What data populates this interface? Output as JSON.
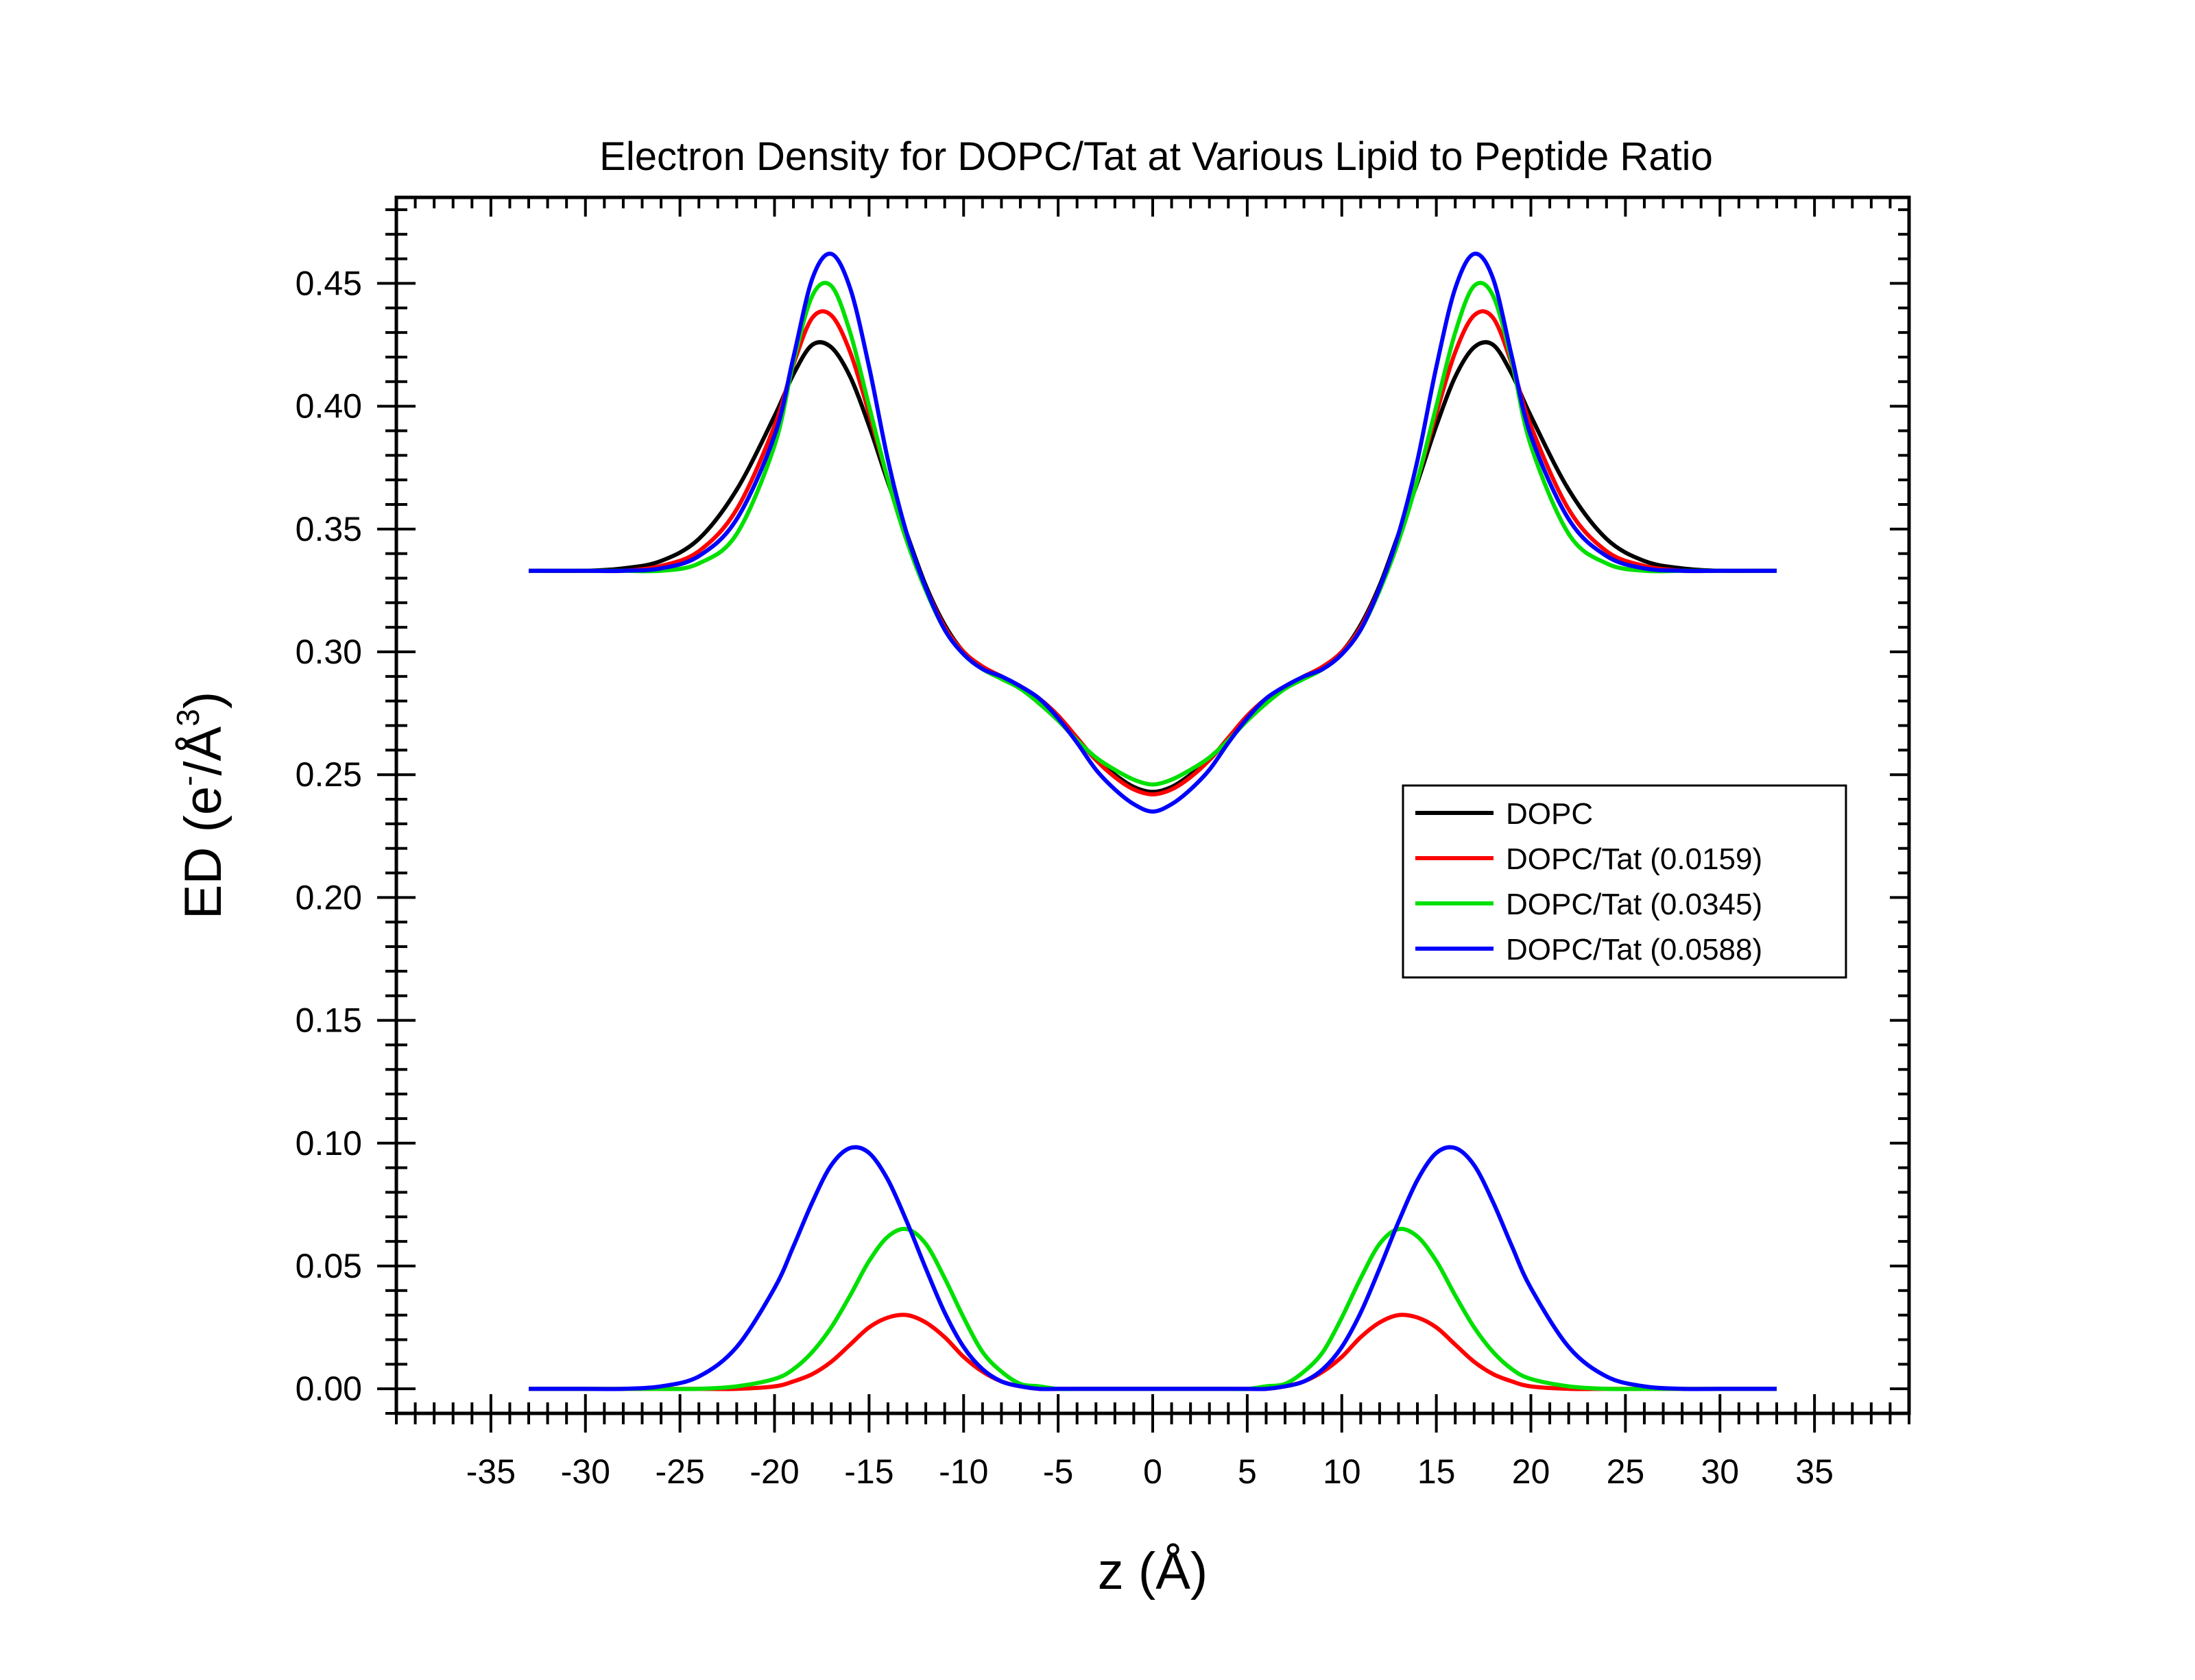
{
  "chart_data": {
    "type": "line",
    "title": "Electron Density for DOPC/Tat at Various Lipid to Peptide Ratio",
    "xlabel": "z (Å)",
    "ylabel_main": "ED (e",
    "ylabel_sup1": "-",
    "ylabel_mid": "/Å",
    "ylabel_sup2": "3",
    "ylabel_end": ")",
    "xlim": [
      -40,
      40
    ],
    "ylim": [
      -0.01,
      0.485
    ],
    "xticks": [
      -35,
      -30,
      -25,
      -20,
      -15,
      -10,
      -5,
      0,
      5,
      10,
      15,
      20,
      25,
      30,
      35
    ],
    "xtick_labels": [
      "-35",
      "-30",
      "-25",
      "-20",
      "-15",
      "-10",
      "-5",
      "0",
      "5",
      "10",
      "15",
      "20",
      "25",
      "30",
      "35"
    ],
    "yticks": [
      0.0,
      0.05,
      0.1,
      0.15,
      0.2,
      0.25,
      0.3,
      0.35,
      0.4,
      0.45
    ],
    "ytick_labels": [
      "0.00",
      "0.05",
      "0.10",
      "0.15",
      "0.20",
      "0.25",
      "0.30",
      "0.35",
      "0.40",
      "0.45"
    ],
    "legend_position": "center-right",
    "x": [
      -33,
      -30,
      -28,
      -26,
      -24,
      -22,
      -20,
      -19,
      -18,
      -17,
      -16,
      -15,
      -14,
      -13,
      -12,
      -11,
      -10,
      -9,
      -8,
      -7,
      -6,
      -5,
      -4,
      -3,
      -2,
      -1,
      0,
      1,
      2,
      3,
      4,
      5,
      6,
      7,
      8,
      9,
      10,
      11,
      12,
      13,
      14,
      15,
      16,
      17,
      18,
      19,
      20,
      22,
      24,
      26,
      28,
      30,
      33
    ],
    "series": [
      {
        "name": "DOPC",
        "color": "#000000",
        "values": [
          0.333,
          0.333,
          0.334,
          0.337,
          0.346,
          0.366,
          0.396,
          0.413,
          0.425,
          0.424,
          0.412,
          0.392,
          0.369,
          0.348,
          0.327,
          0.311,
          0.3,
          0.294,
          0.29,
          0.286,
          0.281,
          0.274,
          0.265,
          0.256,
          0.25,
          0.245,
          0.243,
          0.245,
          0.25,
          0.256,
          0.265,
          0.274,
          0.281,
          0.286,
          0.29,
          0.294,
          0.3,
          0.311,
          0.327,
          0.348,
          0.369,
          0.392,
          0.412,
          0.424,
          0.425,
          0.413,
          0.396,
          0.366,
          0.346,
          0.337,
          0.334,
          0.333,
          0.333
        ]
      },
      {
        "name": "DOPC/Tat (0.0159)",
        "color": "#ff0000",
        "values": [
          0.333,
          0.333,
          0.333,
          0.335,
          0.341,
          0.358,
          0.392,
          0.417,
          0.436,
          0.437,
          0.422,
          0.397,
          0.37,
          0.346,
          0.326,
          0.31,
          0.3,
          0.294,
          0.29,
          0.286,
          0.281,
          0.274,
          0.265,
          0.256,
          0.249,
          0.244,
          0.242,
          0.244,
          0.249,
          0.256,
          0.265,
          0.274,
          0.281,
          0.286,
          0.29,
          0.294,
          0.3,
          0.31,
          0.326,
          0.346,
          0.37,
          0.397,
          0.422,
          0.437,
          0.436,
          0.417,
          0.392,
          0.358,
          0.341,
          0.335,
          0.333,
          0.333,
          0.333
        ]
      },
      {
        "name": "DOPC/Tat (0.0345)",
        "color": "#00e000",
        "values": [
          0.333,
          0.333,
          0.333,
          0.333,
          0.336,
          0.348,
          0.384,
          0.418,
          0.445,
          0.449,
          0.43,
          0.4,
          0.37,
          0.345,
          0.325,
          0.309,
          0.299,
          0.293,
          0.289,
          0.285,
          0.279,
          0.272,
          0.264,
          0.257,
          0.252,
          0.248,
          0.246,
          0.248,
          0.252,
          0.257,
          0.264,
          0.272,
          0.279,
          0.285,
          0.289,
          0.293,
          0.299,
          0.309,
          0.325,
          0.345,
          0.37,
          0.4,
          0.43,
          0.449,
          0.445,
          0.418,
          0.384,
          0.348,
          0.336,
          0.333,
          0.333,
          0.333,
          0.333
        ]
      },
      {
        "name": "DOPC/Tat (0.0588)",
        "color": "#0000ff",
        "values": [
          0.333,
          0.333,
          0.333,
          0.334,
          0.339,
          0.354,
          0.388,
          0.42,
          0.452,
          0.462,
          0.448,
          0.416,
          0.378,
          0.348,
          0.326,
          0.309,
          0.299,
          0.293,
          0.29,
          0.286,
          0.281,
          0.273,
          0.263,
          0.252,
          0.244,
          0.238,
          0.235,
          0.238,
          0.244,
          0.252,
          0.263,
          0.273,
          0.281,
          0.286,
          0.29,
          0.293,
          0.299,
          0.309,
          0.326,
          0.348,
          0.378,
          0.416,
          0.448,
          0.462,
          0.452,
          0.42,
          0.388,
          0.354,
          0.339,
          0.334,
          0.333,
          0.333,
          0.333
        ]
      },
      {
        "color": "#ff0000",
        "values": [
          0.0,
          0.0,
          0.0,
          0.0,
          0.0,
          0.0,
          0.001,
          0.003,
          0.006,
          0.011,
          0.018,
          0.025,
          0.029,
          0.03,
          0.027,
          0.021,
          0.013,
          0.007,
          0.003,
          0.001,
          0.0,
          0.0,
          0.0,
          0.0,
          0.0,
          0.0,
          0.0,
          0.0,
          0.0,
          0.0,
          0.0,
          0.0,
          0.0,
          0.001,
          0.003,
          0.007,
          0.013,
          0.021,
          0.027,
          0.03,
          0.029,
          0.025,
          0.018,
          0.011,
          0.006,
          0.003,
          0.001,
          0.0,
          0.0,
          0.0,
          0.0,
          0.0,
          0.0
        ]
      },
      {
        "color": "#00e000",
        "values": [
          0.0,
          0.0,
          0.0,
          0.0,
          0.0,
          0.001,
          0.004,
          0.008,
          0.015,
          0.025,
          0.038,
          0.052,
          0.062,
          0.065,
          0.059,
          0.045,
          0.029,
          0.015,
          0.007,
          0.002,
          0.001,
          0.0,
          0.0,
          0.0,
          0.0,
          0.0,
          0.0,
          0.0,
          0.0,
          0.0,
          0.0,
          0.0,
          0.001,
          0.002,
          0.007,
          0.015,
          0.029,
          0.045,
          0.059,
          0.065,
          0.062,
          0.052,
          0.038,
          0.025,
          0.015,
          0.008,
          0.004,
          0.001,
          0.0,
          0.0,
          0.0,
          0.0,
          0.0
        ]
      },
      {
        "color": "#0000ff",
        "values": [
          0.0,
          0.0,
          0.0,
          0.001,
          0.005,
          0.017,
          0.041,
          0.058,
          0.076,
          0.091,
          0.098,
          0.096,
          0.085,
          0.068,
          0.049,
          0.031,
          0.017,
          0.008,
          0.003,
          0.001,
          0.0,
          0.0,
          0.0,
          0.0,
          0.0,
          0.0,
          0.0,
          0.0,
          0.0,
          0.0,
          0.0,
          0.0,
          0.0,
          0.001,
          0.003,
          0.008,
          0.017,
          0.031,
          0.049,
          0.068,
          0.085,
          0.096,
          0.098,
          0.091,
          0.076,
          0.058,
          0.041,
          0.017,
          0.005,
          0.001,
          0.0,
          0.0,
          0.0
        ]
      }
    ]
  }
}
